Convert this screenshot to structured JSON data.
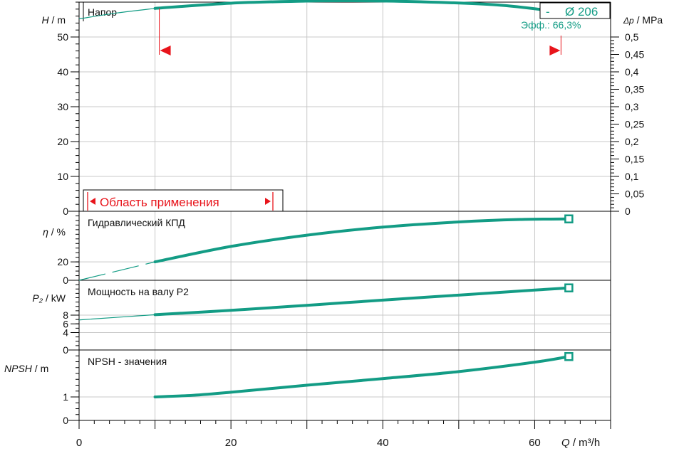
{
  "chart_data": [
    {
      "type": "line",
      "title": "Напор",
      "ylabel": "H / m",
      "ylim": [
        0,
        60
      ],
      "yticks": [
        "0",
        "10",
        "20",
        "30",
        "40",
        "50"
      ],
      "right_axis": {
        "label": "Δp / MPa",
        "ylim": [
          0,
          0.6
        ],
        "ticks": [
          "0",
          "0,05",
          "0,1",
          "0,15",
          "0,2",
          "0,25",
          "0,3",
          "0,35",
          "0,4",
          "0,45",
          "0,5"
        ]
      },
      "series": [
        {
          "curve": [
            [
              10,
              58.2
            ],
            [
              20,
              59.7
            ],
            [
              30,
              60.3
            ],
            [
              36,
              60.4
            ],
            [
              45,
              60.1
            ],
            [
              55,
              59.2
            ],
            [
              63,
              57.3
            ],
            [
              64.5,
              56.9
            ]
          ],
          "extension": [
            [
              0,
              55.2
            ],
            [
              5,
              56.9
            ],
            [
              10,
              58.2
            ]
          ]
        }
      ],
      "range_label": "Область применения",
      "range_x": [
        10,
        63
      ],
      "diameter_label": "Ø 206",
      "diameter_prefix": "-",
      "efficiency_label": "Эфф.: 66,3%",
      "color": "#139C85",
      "marker_color": "#e8141b"
    },
    {
      "type": "line",
      "title": "Гидравлический КПД",
      "ylabel": "η / %",
      "ylim": [
        0,
        75
      ],
      "yticks": [
        "0",
        "20"
      ],
      "series": [
        {
          "curve": [
            [
              10,
              20
            ],
            [
              20,
              36.8
            ],
            [
              30,
              49
            ],
            [
              40,
              57.8
            ],
            [
              50,
              63.4
            ],
            [
              58,
              66.1
            ],
            [
              64.5,
              66.7
            ]
          ],
          "extension": [
            [
              0,
              0
            ],
            [
              10,
              20
            ]
          ]
        }
      ]
    },
    {
      "type": "line",
      "title": "Мощность на валу P2",
      "ylabel": "P₂ / kW",
      "ylim": [
        0,
        16
      ],
      "yticks": [
        "0",
        "4",
        "6",
        "8"
      ],
      "series": [
        {
          "curve": [
            [
              10,
              8.1
            ],
            [
              20,
              9.1
            ],
            [
              30,
              10.25
            ],
            [
              40,
              11.45
            ],
            [
              50,
              12.6
            ],
            [
              60,
              13.75
            ],
            [
              64.5,
              14.25
            ]
          ],
          "extension": [
            [
              0,
              6.9
            ],
            [
              10,
              8.1
            ]
          ]
        }
      ]
    },
    {
      "type": "line",
      "title": "NPSH - значения",
      "ylabel": "NPSH / m",
      "ylim": [
        0,
        3
      ],
      "yticks": [
        "0",
        "1"
      ],
      "series": [
        {
          "curve": [
            [
              10,
              1.0
            ],
            [
              15,
              1.07
            ],
            [
              20,
              1.2
            ],
            [
              30,
              1.5
            ],
            [
              40,
              1.78
            ],
            [
              50,
              2.08
            ],
            [
              60,
              2.48
            ],
            [
              64.5,
              2.72
            ]
          ]
        }
      ]
    }
  ],
  "xaxis": {
    "label": "Q / m³/h",
    "xlim": [
      0,
      70
    ],
    "ticks": [
      "0",
      "20",
      "40",
      "60"
    ]
  }
}
